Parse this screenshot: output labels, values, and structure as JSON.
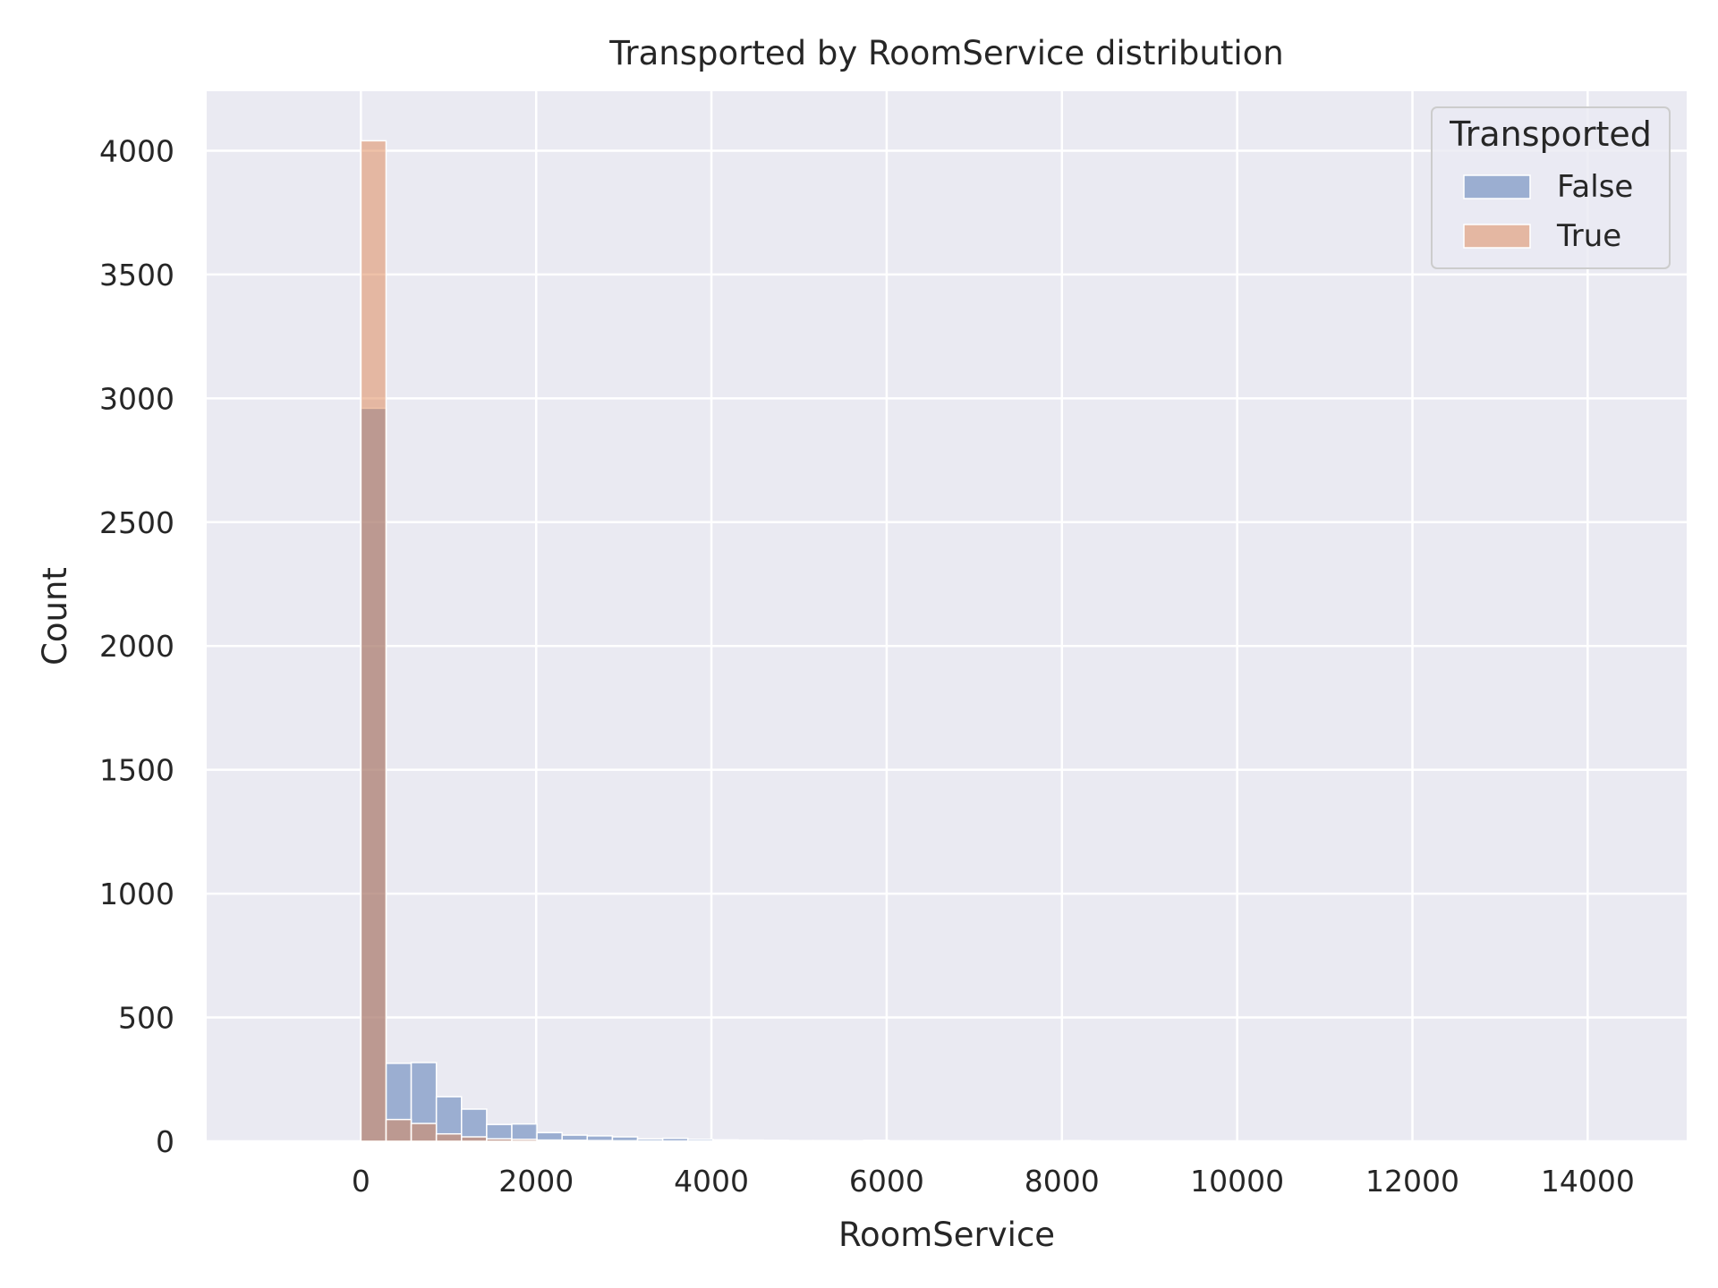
{
  "chart_data": {
    "type": "histogram",
    "title": "Transported by RoomService distribution",
    "xlabel": "RoomService",
    "ylabel": "Count",
    "xlim": [
      -1760,
      15130
    ],
    "ylim": [
      0,
      4240
    ],
    "xticks": [
      0,
      2000,
      4000,
      6000,
      8000,
      10000,
      12000,
      14000
    ],
    "xtick_labels": [
      "0",
      "2000",
      "4000",
      "6000",
      "8000",
      "10000",
      "12000",
      "14000"
    ],
    "yticks": [
      0,
      500,
      1000,
      1500,
      2000,
      2500,
      3000,
      3500,
      4000
    ],
    "ytick_labels": [
      "0",
      "500",
      "1000",
      "1500",
      "2000",
      "2500",
      "3000",
      "3500",
      "4000"
    ],
    "grid": true,
    "legend": {
      "title": "Transported",
      "position": "upper-right",
      "entries": [
        "False",
        "True"
      ]
    },
    "bin_edges": [
      0,
      287,
      574,
      861,
      1148,
      1435,
      1722,
      2009,
      2296,
      2583,
      2870,
      3157,
      3444,
      3731,
      4018,
      4305,
      4592,
      4879,
      5166,
      5453,
      5740,
      6027,
      6314,
      6601,
      6888,
      7175,
      7462,
      7749,
      8036,
      8323,
      8610,
      8897,
      9184,
      9471,
      9758,
      10045,
      10332,
      10619,
      10906,
      11193,
      11480,
      11767,
      12054,
      12341,
      12628,
      12915,
      13202,
      13489,
      13776,
      14063,
      14350
    ],
    "series": [
      {
        "name": "False",
        "color": "#4c72b0",
        "values": [
          2960,
          315,
          318,
          180,
          130,
          68,
          70,
          35,
          25,
          22,
          18,
          10,
          12,
          8,
          6,
          5,
          4,
          3,
          3,
          2,
          4,
          2,
          2,
          1,
          1,
          1,
          0,
          1,
          3,
          1,
          0,
          1,
          0,
          0,
          0,
          1,
          0,
          0,
          0,
          0,
          0,
          0,
          0,
          0,
          0,
          0,
          0,
          0,
          0,
          1
        ]
      },
      {
        "name": "True",
        "color": "#dd8452",
        "values": [
          4040,
          88,
          72,
          30,
          18,
          10,
          8,
          5,
          4,
          3,
          2,
          2,
          1,
          1,
          1,
          0,
          1,
          0,
          0,
          0,
          0,
          0,
          0,
          0,
          0,
          0,
          0,
          0,
          0,
          0,
          0,
          0,
          0,
          0,
          0,
          0,
          0,
          0,
          0,
          0,
          0,
          0,
          0,
          0,
          0,
          0,
          0,
          0,
          0,
          0
        ]
      }
    ],
    "colors": {
      "axes_background": "#eaeaf2",
      "grid": "#ffffff",
      "text": "#262626"
    }
  }
}
